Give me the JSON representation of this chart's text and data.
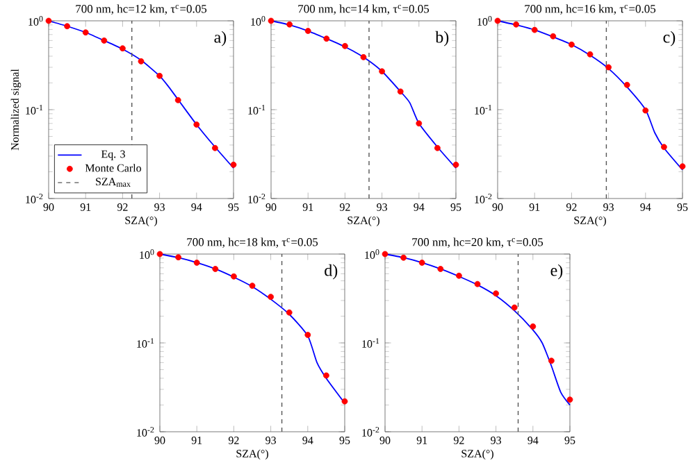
{
  "chart_data": [
    {
      "type": "line",
      "title": "700 nm, hc=12 km, τ$^{c}$=0.05",
      "xlabel": "SZA(°)",
      "ylabel": "Normalized signal",
      "log": "y",
      "xlim": [
        90,
        95
      ],
      "xticks": [
        90,
        91,
        92,
        93,
        94,
        95
      ],
      "ylim": [
        0.01,
        1
      ],
      "yticks": [
        {
          "value": 0.01,
          "label": "10$^{-2}$"
        },
        {
          "value": 0.1,
          "label": "10$^{-1}$"
        },
        {
          "value": 1,
          "label": "10$^{0}$"
        }
      ],
      "legend": "bottom left",
      "annotations": [
        "a)"
      ],
      "series": [
        {
          "name": "Eq. 3",
          "color": "#0000ff",
          "x": [
            90,
            90.5,
            91,
            91.5,
            92,
            92.5,
            93,
            93.25,
            93.5,
            94,
            94.5,
            95
          ],
          "values": [
            1,
            0.87,
            0.74,
            0.6,
            0.48,
            0.36,
            0.24,
            0.18,
            0.13,
            0.068,
            0.038,
            0.022
          ]
        },
        {
          "name": "Monte Carlo",
          "type": "scatter",
          "color": "#ff0000",
          "x": [
            90,
            90.5,
            91,
            91.5,
            92,
            92.5,
            93,
            93.5,
            94,
            94.5,
            95
          ],
          "values": [
            1,
            0.87,
            0.74,
            0.6,
            0.49,
            0.35,
            0.24,
            0.128,
            0.068,
            0.037,
            0.024
          ]
        }
      ],
      "ref_lines": [
        {
          "axis": "x",
          "value": 92.25,
          "label": "SZA$_{max}$",
          "line_style": "dashed",
          "color": "#555555"
        }
      ]
    },
    {
      "type": "line",
      "title": "700 nm, hc=14 km, τ$^{c}$=0.05",
      "xlabel": "SZA(°)",
      "log": "y",
      "xlim": [
        90,
        95
      ],
      "xticks": [
        90,
        91,
        92,
        93,
        94,
        95
      ],
      "ylim": [
        0.01,
        1
      ],
      "yticks": [
        {
          "value": 0.01,
          "label": "10$^{-2}$"
        },
        {
          "value": 0.1,
          "label": "10$^{-1}$"
        },
        {
          "value": 1,
          "label": "10$^{0}$"
        }
      ],
      "annotations": [
        "b)"
      ],
      "series": [
        {
          "color": "#0000ff",
          "x": [
            90,
            90.5,
            91,
            91.5,
            92,
            92.5,
            93,
            93.5,
            93.75,
            94,
            94.5,
            95
          ],
          "values": [
            1,
            0.9,
            0.77,
            0.63,
            0.51,
            0.39,
            0.27,
            0.16,
            0.12,
            0.07,
            0.038,
            0.022
          ]
        },
        {
          "type": "scatter",
          "color": "#ff0000",
          "x": [
            90,
            90.5,
            91,
            91.5,
            92,
            92.5,
            93,
            93.5,
            94,
            94.5,
            95
          ],
          "values": [
            1,
            0.91,
            0.77,
            0.63,
            0.52,
            0.39,
            0.27,
            0.16,
            0.07,
            0.037,
            0.024
          ]
        }
      ],
      "ref_lines": [
        {
          "axis": "x",
          "value": 92.65,
          "line_style": "dashed",
          "color": "#555555"
        }
      ]
    },
    {
      "type": "line",
      "title": "700 nm, hc=16 km, τ$^{c}$=0.05",
      "xlabel": "SZA(°)",
      "log": "y",
      "xlim": [
        90,
        95
      ],
      "xticks": [
        90,
        91,
        92,
        93,
        94,
        95
      ],
      "ylim": [
        0.01,
        1
      ],
      "yticks": [
        {
          "value": 0.01,
          "label": "10$^{-2}$"
        },
        {
          "value": 0.1,
          "label": "10$^{-1}$"
        },
        {
          "value": 1,
          "label": "10$^{0}$"
        }
      ],
      "annotations": [
        "c)"
      ],
      "series": [
        {
          "color": "#0000ff",
          "x": [
            90,
            90.5,
            91,
            91.5,
            92,
            92.5,
            93,
            93.5,
            94,
            94.25,
            94.5,
            95
          ],
          "values": [
            1,
            0.9,
            0.79,
            0.66,
            0.54,
            0.41,
            0.29,
            0.18,
            0.1,
            0.055,
            0.037,
            0.021
          ]
        },
        {
          "type": "scatter",
          "color": "#ff0000",
          "x": [
            90,
            90.5,
            91,
            91.5,
            92,
            92.5,
            93,
            93.5,
            94,
            94.5,
            95
          ],
          "values": [
            1,
            0.91,
            0.79,
            0.67,
            0.54,
            0.42,
            0.3,
            0.19,
            0.098,
            0.038,
            0.023
          ]
        }
      ],
      "ref_lines": [
        {
          "axis": "x",
          "value": 92.94,
          "line_style": "dashed",
          "color": "#555555"
        }
      ]
    },
    {
      "type": "line",
      "title": "700 nm, hc=18 km, τ$^{c}$=0.05",
      "xlabel": "SZA(°)",
      "log": "y",
      "xlim": [
        90,
        95
      ],
      "xticks": [
        90,
        91,
        92,
        93,
        94,
        95
      ],
      "ylim": [
        0.01,
        1
      ],
      "yticks": [
        {
          "value": 0.01,
          "label": "10$^{-2}$"
        },
        {
          "value": 0.1,
          "label": "10$^{-1}$"
        },
        {
          "value": 1,
          "label": "10$^{0}$"
        }
      ],
      "annotations": [
        "d)"
      ],
      "series": [
        {
          "color": "#0000ff",
          "x": [
            90,
            90.5,
            91,
            91.5,
            92,
            92.5,
            93,
            93.5,
            94,
            94.25,
            94.5,
            95
          ],
          "values": [
            1,
            0.91,
            0.8,
            0.68,
            0.55,
            0.43,
            0.31,
            0.21,
            0.12,
            0.06,
            0.04,
            0.021
          ]
        },
        {
          "type": "scatter",
          "color": "#ff0000",
          "x": [
            90,
            90.5,
            91,
            91.5,
            92,
            92.5,
            93,
            93.5,
            94,
            94.5,
            95
          ],
          "values": [
            1,
            0.92,
            0.8,
            0.68,
            0.56,
            0.44,
            0.33,
            0.22,
            0.123,
            0.043,
            0.022
          ]
        }
      ],
      "ref_lines": [
        {
          "axis": "x",
          "value": 93.3,
          "line_style": "dashed",
          "color": "#555555"
        }
      ]
    },
    {
      "type": "line",
      "title": "700 nm, hc=20 km, τ$^{c}$=0.05",
      "xlabel": "SZA(°)",
      "log": "y",
      "xlim": [
        90,
        95
      ],
      "xticks": [
        90,
        91,
        92,
        93,
        94,
        95
      ],
      "ylim": [
        0.01,
        1
      ],
      "yticks": [
        {
          "value": 0.01,
          "label": "10$^{-2}$"
        },
        {
          "value": 0.1,
          "label": "10$^{-1}$"
        },
        {
          "value": 1,
          "label": "10$^{0}$"
        }
      ],
      "annotations": [
        "e)"
      ],
      "series": [
        {
          "color": "#0000ff",
          "x": [
            90,
            90.5,
            91,
            91.5,
            92,
            92.5,
            93,
            93.5,
            94,
            94.25,
            94.5,
            94.75,
            95
          ],
          "values": [
            1,
            0.91,
            0.8,
            0.68,
            0.56,
            0.45,
            0.34,
            0.23,
            0.14,
            0.1,
            0.055,
            0.028,
            0.02
          ]
        },
        {
          "type": "scatter",
          "color": "#ff0000",
          "x": [
            90,
            90.5,
            91,
            91.5,
            92,
            92.5,
            93,
            93.5,
            94,
            94.5,
            95
          ],
          "values": [
            1,
            0.91,
            0.8,
            0.68,
            0.57,
            0.46,
            0.36,
            0.25,
            0.153,
            0.063,
            0.023
          ]
        }
      ],
      "ref_lines": [
        {
          "axis": "x",
          "value": 93.6,
          "line_style": "dashed",
          "color": "#555555"
        }
      ]
    }
  ]
}
